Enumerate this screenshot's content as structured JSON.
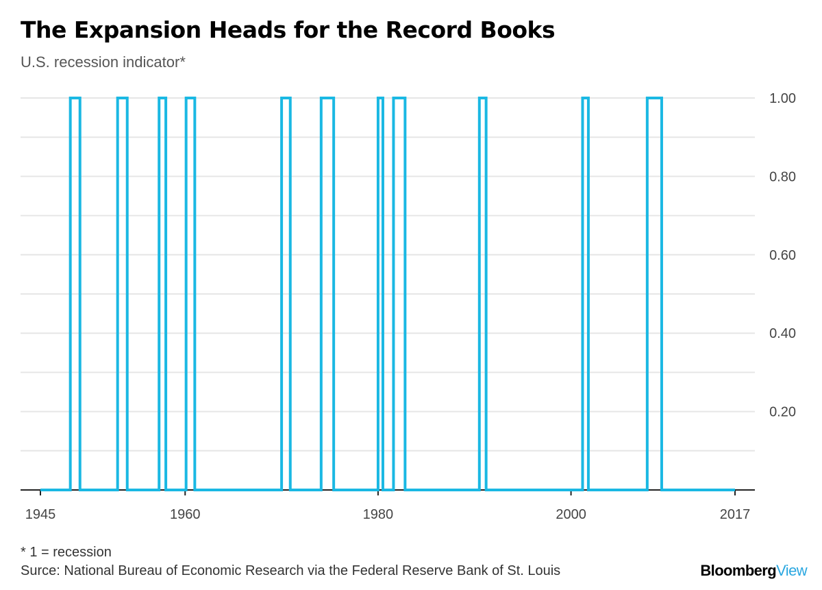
{
  "header": {
    "title": "The Expansion Heads for the Record Books",
    "subtitle": "U.S. recession indicator*"
  },
  "footer": {
    "footnote": "* 1 = recession",
    "source": "Surce: National Bureau of Economic Research via the Federal Reserve Bank of St. Louis",
    "brand_part1": "Bloomberg",
    "brand_part2": "View"
  },
  "colors": {
    "series": "#1ab8e3",
    "grid": "#e6e6e6",
    "axis": "#222222",
    "brand_accent": "#2aa7e0"
  },
  "chart_data": {
    "type": "line",
    "step": true,
    "x_axis": {
      "min": 1945,
      "max": 2017,
      "ticks": [
        1945,
        1960,
        1980,
        2000,
        2017
      ],
      "tick_labels": [
        "1945",
        "1960",
        "1980",
        "2000",
        "2017"
      ]
    },
    "y_axis": {
      "min": 0,
      "max": 1,
      "position": "right",
      "ticks": [
        0.2,
        0.4,
        0.6,
        0.8,
        1.0
      ],
      "tick_labels": [
        "0.20",
        "0.40",
        "0.60",
        "0.80",
        "1.00"
      ],
      "gridlines": [
        0.1,
        0.2,
        0.3,
        0.4,
        0.5,
        0.6,
        0.7,
        0.8,
        0.9,
        1.0
      ]
    },
    "grid": true,
    "recessions": [
      {
        "start": 1948.1,
        "end": 1949.1
      },
      {
        "start": 1953.0,
        "end": 1954.0
      },
      {
        "start": 1957.3,
        "end": 1958.0
      },
      {
        "start": 1960.1,
        "end": 1961.0
      },
      {
        "start": 1970.0,
        "end": 1970.9
      },
      {
        "start": 1974.1,
        "end": 1975.4
      },
      {
        "start": 1980.0,
        "end": 1980.5
      },
      {
        "start": 1981.6,
        "end": 1982.8
      },
      {
        "start": 1990.5,
        "end": 1991.2
      },
      {
        "start": 2001.2,
        "end": 2001.8
      },
      {
        "start": 2007.9,
        "end": 2009.4
      }
    ]
  }
}
